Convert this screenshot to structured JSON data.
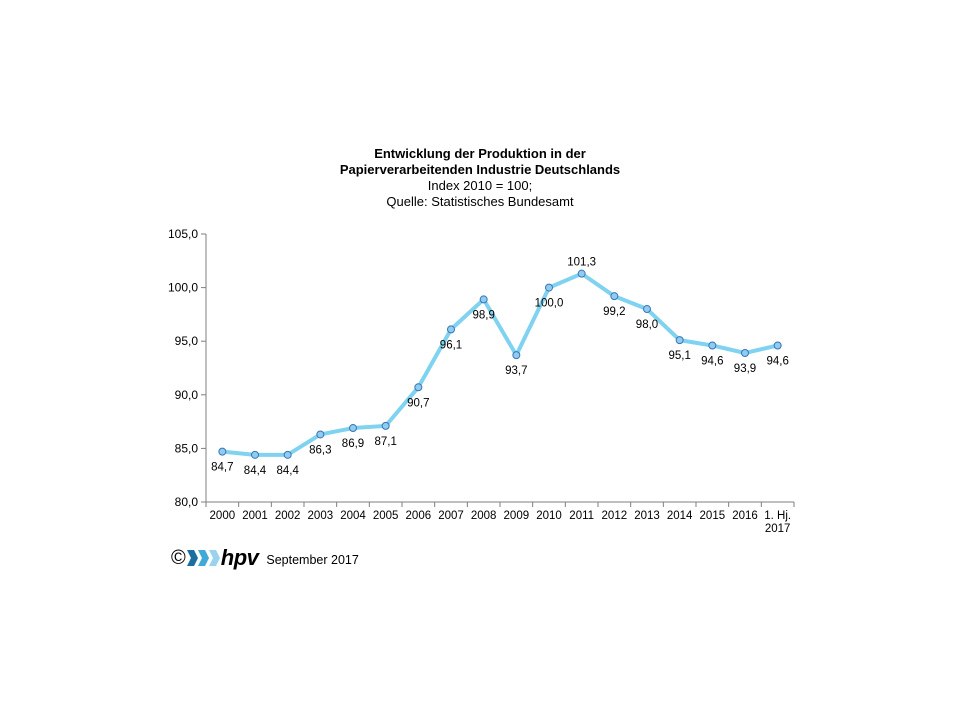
{
  "chart_data": {
    "type": "line",
    "title_lines": [
      "Entwicklung der Produktion in der",
      "Papierverarbeitenden Industrie Deutschlands",
      "Index 2010 = 100;",
      "Quelle: Statistisches Bundesamt"
    ],
    "categories": [
      [
        "2000"
      ],
      [
        "2001"
      ],
      [
        "2002"
      ],
      [
        "2003"
      ],
      [
        "2004"
      ],
      [
        "2005"
      ],
      [
        "2006"
      ],
      [
        "2007"
      ],
      [
        "2008"
      ],
      [
        "2009"
      ],
      [
        "2010"
      ],
      [
        "2011"
      ],
      [
        "2012"
      ],
      [
        "2013"
      ],
      [
        "2014"
      ],
      [
        "2015"
      ],
      [
        "2016"
      ],
      [
        "1. Hj.",
        "2017"
      ]
    ],
    "values": [
      84.7,
      84.4,
      84.4,
      86.3,
      86.9,
      87.1,
      90.7,
      96.1,
      98.9,
      93.7,
      100.0,
      101.3,
      99.2,
      98.0,
      95.1,
      94.6,
      93.9,
      94.6
    ],
    "data_labels": [
      "84,7",
      "84,4",
      "84,4",
      "86,3",
      "86,9",
      "87,1",
      "90,7",
      "96,1",
      "98,9",
      "93,7",
      "100,0",
      "101,3",
      "99,2",
      "98,0",
      "95,1",
      "94,6",
      "93,9",
      "94,6"
    ],
    "ylim": [
      80,
      105
    ],
    "yticks": [
      80,
      85,
      90,
      95,
      100,
      105
    ],
    "ytick_labels": [
      "80,0",
      "85,0",
      "90,0",
      "95,0",
      "100,0",
      "105,0"
    ],
    "grid": false,
    "legend": "none",
    "line_color": "#7fd3f0",
    "marker_color": "#8ecdf0",
    "marker_edge_color": "#3a73b8"
  },
  "footer": {
    "copyright": "©",
    "logo_text": "hpv",
    "date": "September 2017",
    "logo_colors": [
      "#1a6fa0",
      "#3fa9d8",
      "#9bd3ef"
    ]
  }
}
